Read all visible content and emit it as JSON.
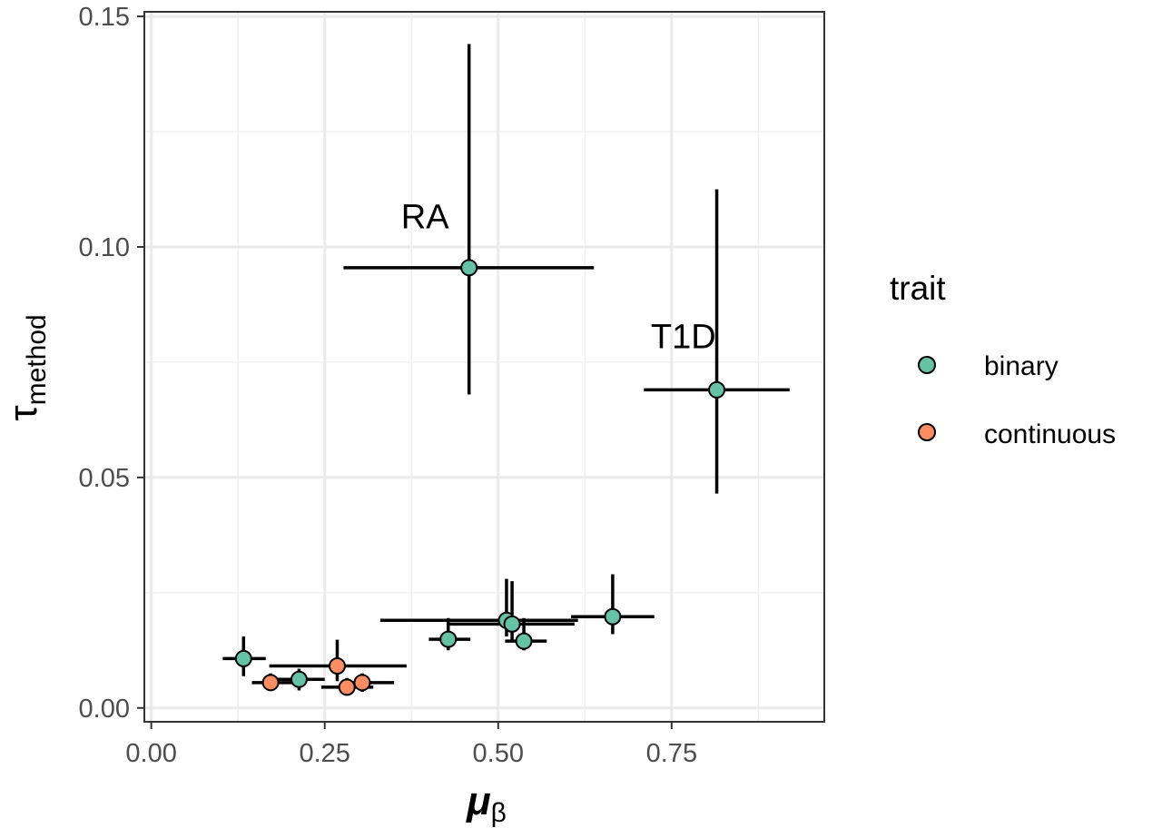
{
  "chart_data": {
    "type": "scatter",
    "xlabel": "μ",
    "xlabel_sub": "β",
    "ylabel": "τ",
    "ylabel_sub": "method",
    "xlim": [
      -0.01,
      0.97
    ],
    "ylim": [
      -0.003,
      0.151
    ],
    "x_ticks": [
      0.0,
      0.25,
      0.5,
      0.75
    ],
    "x_tick_labels": [
      "0.00",
      "0.25",
      "0.50",
      "0.75"
    ],
    "y_ticks": [
      0.0,
      0.05,
      0.1,
      0.15
    ],
    "y_tick_labels": [
      "0.00",
      "0.05",
      "0.10",
      "0.15"
    ],
    "grid": true,
    "legend": {
      "title": "trait",
      "position": "right",
      "entries": [
        {
          "label": "binary",
          "color": "#66c2a5"
        },
        {
          "label": "continuous",
          "color": "#fc8d62"
        }
      ]
    },
    "annotations": [
      {
        "text": "RA",
        "x": 0.36,
        "y": 0.104
      },
      {
        "text": "T1D",
        "x": 0.72,
        "y": 0.078
      }
    ],
    "series": [
      {
        "name": "binary",
        "color": "#66c2a5",
        "points": [
          {
            "x": 0.133,
            "y": 0.0107,
            "xmin": 0.103,
            "xmax": 0.165,
            "ymin": 0.0069,
            "ymax": 0.0155
          },
          {
            "x": 0.213,
            "y": 0.0062,
            "xmin": 0.18,
            "xmax": 0.25,
            "ymin": 0.0038,
            "ymax": 0.0085
          },
          {
            "x": 0.428,
            "y": 0.0149,
            "xmin": 0.4,
            "xmax": 0.46,
            "ymin": 0.0125,
            "ymax": 0.0195
          },
          {
            "x": 0.458,
            "y": 0.0955,
            "xmin": 0.277,
            "xmax": 0.638,
            "ymin": 0.068,
            "ymax": 0.144
          },
          {
            "x": 0.512,
            "y": 0.019,
            "xmin": 0.33,
            "xmax": 0.615,
            "ymin": 0.0155,
            "ymax": 0.028
          },
          {
            "x": 0.52,
            "y": 0.0182,
            "xmin": 0.43,
            "xmax": 0.61,
            "ymin": 0.0145,
            "ymax": 0.0275
          },
          {
            "x": 0.537,
            "y": 0.0145,
            "xmin": 0.51,
            "xmax": 0.57,
            "ymin": 0.0125,
            "ymax": 0.0195
          },
          {
            "x": 0.665,
            "y": 0.0198,
            "xmin": 0.605,
            "xmax": 0.725,
            "ymin": 0.016,
            "ymax": 0.029
          },
          {
            "x": 0.815,
            "y": 0.069,
            "xmin": 0.71,
            "xmax": 0.92,
            "ymin": 0.0465,
            "ymax": 0.1125
          }
        ]
      },
      {
        "name": "continuous",
        "color": "#fc8d62",
        "points": [
          {
            "x": 0.172,
            "y": 0.0055,
            "xmin": 0.145,
            "xmax": 0.21,
            "ymin": 0.0038,
            "ymax": 0.0075
          },
          {
            "x": 0.268,
            "y": 0.0091,
            "xmin": 0.17,
            "xmax": 0.368,
            "ymin": 0.0058,
            "ymax": 0.0148
          },
          {
            "x": 0.282,
            "y": 0.0045,
            "xmin": 0.245,
            "xmax": 0.32,
            "ymin": 0.0035,
            "ymax": 0.0065
          },
          {
            "x": 0.304,
            "y": 0.0055,
            "xmin": 0.28,
            "xmax": 0.35,
            "ymin": 0.0035,
            "ymax": 0.0075
          }
        ]
      }
    ]
  }
}
